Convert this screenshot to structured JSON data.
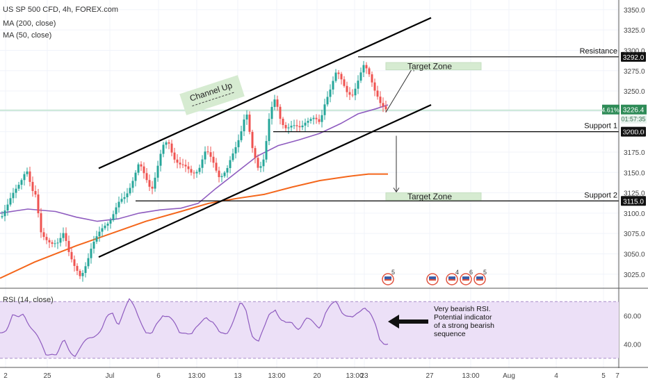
{
  "header": {
    "symbol_line": "US SP 500 CFD, 4h, FOREX.com",
    "ma200_label": "MA (200, close)",
    "ma50_label": "MA (50, close)",
    "rsi_label": "RSI (14, close)"
  },
  "colors": {
    "bull": "#26a69a",
    "bear": "#ef5350",
    "ma50": "#8e5bbf",
    "ma200": "#f4661b",
    "rsi_line": "#8e5bbf",
    "rsi_band": "#ece0f7",
    "zone": "#d6ebd1",
    "current_line": "#c8e6d6",
    "current_tag": "#2e8b57"
  },
  "chart_data": [
    {
      "type": "candlestick",
      "ylim": [
        3012,
        3355
      ],
      "y_ticks": [
        3025,
        3050,
        3075,
        3100,
        3125,
        3150,
        3175,
        3200,
        3225,
        3250,
        3275,
        3300,
        3325,
        3350
      ],
      "x_ticks": [
        "2",
        "25",
        "Jul",
        "6",
        "13:00",
        "13",
        "13:00",
        "20",
        "13:00",
        "23",
        "27",
        "13:00",
        "Aug",
        "4",
        "5",
        "7"
      ],
      "price_anchors": [
        [
          0,
          3095
        ],
        [
          12,
          3110
        ],
        [
          22,
          3128
        ],
        [
          30,
          3142
        ],
        [
          38,
          3155
        ],
        [
          46,
          3125
        ],
        [
          52,
          3120
        ],
        [
          58,
          3080
        ],
        [
          66,
          3070
        ],
        [
          74,
          3060
        ],
        [
          82,
          3060
        ],
        [
          92,
          3080
        ],
        [
          100,
          3050
        ],
        [
          108,
          3030
        ],
        [
          116,
          3020
        ],
        [
          124,
          3040
        ],
        [
          132,
          3060
        ],
        [
          140,
          3070
        ],
        [
          150,
          3085
        ],
        [
          160,
          3095
        ],
        [
          170,
          3110
        ],
        [
          180,
          3120
        ],
        [
          190,
          3140
        ],
        [
          200,
          3160
        ],
        [
          208,
          3145
        ],
        [
          218,
          3130
        ],
        [
          226,
          3155
        ],
        [
          234,
          3180
        ],
        [
          242,
          3188
        ],
        [
          250,
          3170
        ],
        [
          258,
          3160
        ],
        [
          266,
          3155
        ],
        [
          276,
          3150
        ],
        [
          286,
          3155
        ],
        [
          296,
          3175
        ],
        [
          306,
          3165
        ],
        [
          316,
          3145
        ],
        [
          326,
          3150
        ],
        [
          336,
          3175
        ],
        [
          346,
          3200
        ],
        [
          354,
          3225
        ],
        [
          362,
          3180
        ],
        [
          372,
          3155
        ],
        [
          380,
          3170
        ],
        [
          388,
          3220
        ],
        [
          396,
          3240
        ],
        [
          404,
          3215
        ],
        [
          412,
          3205
        ],
        [
          420,
          3205
        ],
        [
          430,
          3205
        ],
        [
          440,
          3215
        ],
        [
          450,
          3215
        ],
        [
          460,
          3210
        ],
        [
          468,
          3240
        ],
        [
          476,
          3255
        ],
        [
          484,
          3272
        ],
        [
          492,
          3262
        ],
        [
          500,
          3250
        ],
        [
          508,
          3245
        ],
        [
          516,
          3262
        ],
        [
          524,
          3284
        ],
        [
          532,
          3272
        ],
        [
          540,
          3248
        ],
        [
          548,
          3230
        ],
        [
          556,
          3227
        ]
      ],
      "ma50_anchors": [
        [
          0,
          3100
        ],
        [
          40,
          3105
        ],
        [
          80,
          3102
        ],
        [
          110,
          3095
        ],
        [
          140,
          3090
        ],
        [
          170,
          3093
        ],
        [
          200,
          3100
        ],
        [
          230,
          3104
        ],
        [
          260,
          3106
        ],
        [
          285,
          3112
        ],
        [
          310,
          3130
        ],
        [
          340,
          3150
        ],
        [
          370,
          3170
        ],
        [
          400,
          3183
        ],
        [
          430,
          3190
        ],
        [
          460,
          3198
        ],
        [
          490,
          3210
        ],
        [
          515,
          3222
        ],
        [
          540,
          3228
        ],
        [
          558,
          3233
        ]
      ],
      "ma200_anchors": [
        [
          0,
          3020
        ],
        [
          50,
          3040
        ],
        [
          110,
          3060
        ],
        [
          160,
          3075
        ],
        [
          210,
          3090
        ],
        [
          260,
          3102
        ],
        [
          300,
          3112
        ],
        [
          340,
          3118
        ],
        [
          380,
          3123
        ],
        [
          420,
          3132
        ],
        [
          460,
          3140
        ],
        [
          500,
          3145
        ],
        [
          530,
          3148
        ],
        [
          558,
          3148
        ]
      ],
      "channel": {
        "lower": [
          [
            142,
            3046
          ],
          [
            620,
            3233
          ]
        ],
        "upper": [
          [
            142,
            3155
          ],
          [
            620,
            3340
          ]
        ]
      },
      "horizontal_levels": [
        {
          "label": "Resistance",
          "value": 3292.0,
          "tag": "3292.0",
          "x_start": 515
        },
        {
          "label": "Support 1",
          "value": 3200.0,
          "tag": "3200.0",
          "x_start": 393
        },
        {
          "label": "Support 2",
          "value": 3115.0,
          "tag": "3115.0",
          "x_start": 195
        }
      ],
      "target_zones": [
        {
          "label": "Target Zone",
          "from": 3276,
          "to": 3285
        },
        {
          "label": "Target Zone",
          "from": 3116,
          "to": 3125
        }
      ],
      "channel_label": "Channel Up",
      "current_price": {
        "value": 3226.4,
        "tag": "3226.4",
        "percent": "4.61%",
        "countdown": "01:57:35"
      },
      "events": [
        "5",
        "",
        "4",
        "6",
        "5"
      ]
    },
    {
      "type": "line",
      "title": "RSI (14, close)",
      "ylim": [
        26,
        78
      ],
      "bands": [
        30,
        70
      ],
      "y_ticks": [
        "60.00",
        "40.00"
      ],
      "rsi_anchors": [
        [
          0,
          48
        ],
        [
          10,
          52
        ],
        [
          18,
          60
        ],
        [
          26,
          57
        ],
        [
          34,
          62
        ],
        [
          42,
          55
        ],
        [
          50,
          48
        ],
        [
          58,
          40
        ],
        [
          66,
          33
        ],
        [
          74,
          35
        ],
        [
          82,
          32
        ],
        [
          92,
          42
        ],
        [
          100,
          36
        ],
        [
          108,
          33
        ],
        [
          118,
          38
        ],
        [
          128,
          44
        ],
        [
          138,
          48
        ],
        [
          146,
          50
        ],
        [
          154,
          58
        ],
        [
          162,
          62
        ],
        [
          170,
          55
        ],
        [
          178,
          63
        ],
        [
          186,
          70
        ],
        [
          194,
          66
        ],
        [
          202,
          58
        ],
        [
          210,
          48
        ],
        [
          218,
          45
        ],
        [
          226,
          55
        ],
        [
          234,
          62
        ],
        [
          242,
          60
        ],
        [
          250,
          54
        ],
        [
          258,
          48
        ],
        [
          266,
          50
        ],
        [
          276,
          47
        ],
        [
          286,
          52
        ],
        [
          296,
          61
        ],
        [
          306,
          56
        ],
        [
          316,
          46
        ],
        [
          326,
          48
        ],
        [
          336,
          58
        ],
        [
          346,
          68
        ],
        [
          354,
          63
        ],
        [
          362,
          48
        ],
        [
          372,
          42
        ],
        [
          380,
          50
        ],
        [
          388,
          62
        ],
        [
          396,
          66
        ],
        [
          404,
          57
        ],
        [
          412,
          53
        ],
        [
          420,
          55
        ],
        [
          430,
          52
        ],
        [
          440,
          57
        ],
        [
          450,
          55
        ],
        [
          460,
          53
        ],
        [
          468,
          62
        ],
        [
          476,
          66
        ],
        [
          484,
          70
        ],
        [
          492,
          64
        ],
        [
          500,
          60
        ],
        [
          508,
          57
        ],
        [
          516,
          62
        ],
        [
          524,
          68
        ],
        [
          532,
          63
        ],
        [
          540,
          52
        ],
        [
          546,
          42
        ],
        [
          552,
          41
        ],
        [
          558,
          42
        ]
      ],
      "annotation": [
        "Very bearish RSI.",
        "Potential indicator",
        "of a strong bearish",
        "sequence"
      ]
    }
  ]
}
